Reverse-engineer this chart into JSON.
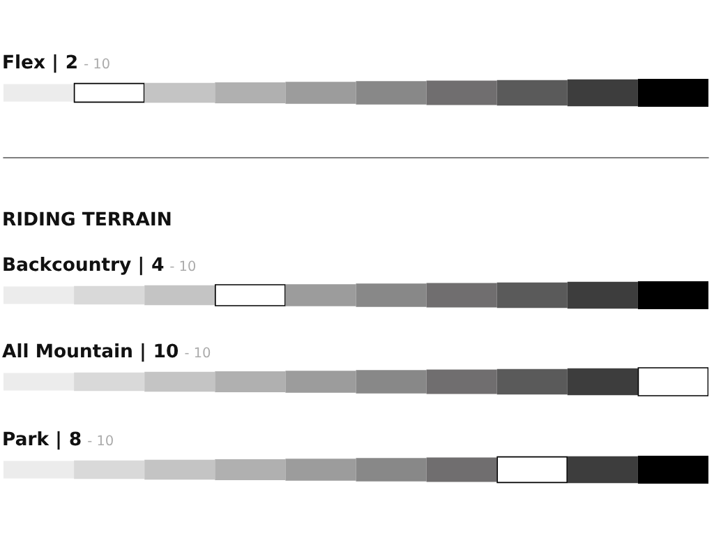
{
  "chart_data": [
    {
      "type": "other",
      "title": "Flex |",
      "subtitle": "- 10",
      "values": [
        2
      ],
      "value_labels": [
        "2"
      ]
    },
    {
      "type": "other",
      "title": "Backcountry |",
      "subtitle": "- 10",
      "annotations": [
        "RIDING TERRAIN"
      ],
      "values": [
        4
      ],
      "value_labels": [
        "4"
      ]
    },
    {
      "type": "other",
      "title": "All Mountain |",
      "subtitle": "- 10",
      "values": [
        10
      ],
      "value_labels": [
        "10"
      ]
    },
    {
      "type": "other",
      "title": "Park |",
      "subtitle": "- 10",
      "values": [
        8
      ],
      "value_labels": [
        "8"
      ]
    }
  ]
}
